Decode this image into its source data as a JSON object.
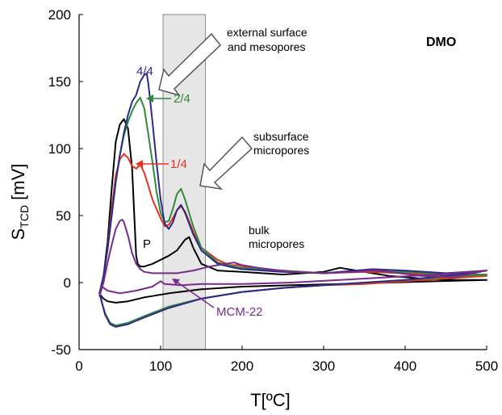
{
  "chart_data": {
    "type": "line",
    "title": "DMO",
    "xlabel": "T[ºC]",
    "ylabel": {
      "main": "S",
      "sub": "TCD",
      "unit": " [mV]"
    },
    "xlim": [
      0,
      500
    ],
    "ylim": [
      -50,
      200
    ],
    "xticks": [
      0,
      100,
      200,
      300,
      400,
      500
    ],
    "yticks": [
      -50,
      0,
      50,
      100,
      150,
      200
    ],
    "grid": false,
    "legend": "none",
    "shaded_band": {
      "x_from": 103,
      "x_to": 155,
      "color": "#e6e6e6"
    },
    "series": [
      {
        "name": "P",
        "color": "#000000",
        "x": [
          25,
          30,
          35,
          40,
          45,
          50,
          55,
          60,
          65,
          70,
          72,
          75,
          80,
          90,
          100,
          110,
          120,
          130,
          135,
          140,
          150,
          170,
          200,
          250,
          300,
          320,
          340,
          380,
          420,
          460,
          500
        ],
        "y": [
          -8,
          5,
          30,
          70,
          105,
          118,
          122,
          115,
          85,
          20,
          14,
          12,
          12,
          14,
          17,
          20,
          24,
          32,
          34,
          26,
          14,
          9,
          8,
          6,
          8,
          11,
          9,
          5,
          3,
          2,
          2
        ],
        "return_x": [
          500,
          440,
          380,
          320,
          260,
          200,
          150,
          110,
          80,
          60,
          45,
          35,
          30,
          27,
          25
        ],
        "return_y": [
          2,
          1,
          0,
          -1,
          -2,
          -3,
          -5,
          -8,
          -11,
          -14,
          -15,
          -14,
          -12,
          -10,
          -8
        ]
      },
      {
        "name": "1/4",
        "color": "#e8321e",
        "x": [
          25,
          30,
          35,
          40,
          45,
          50,
          55,
          60,
          65,
          70,
          75,
          80,
          85,
          90,
          100,
          105,
          110,
          115,
          120,
          125,
          130,
          140,
          150,
          170,
          185,
          195,
          210,
          250,
          300,
          350,
          400,
          450,
          500
        ],
        "y": [
          -8,
          5,
          25,
          55,
          80,
          92,
          96,
          93,
          87,
          85,
          88,
          82,
          72,
          62,
          48,
          42,
          43,
          48,
          54,
          57,
          53,
          38,
          26,
          17,
          13,
          13,
          11,
          9,
          7,
          8,
          7,
          5,
          5
        ],
        "return_x": [
          500,
          450,
          400,
          350,
          300,
          250,
          200,
          150,
          110,
          80,
          60,
          45,
          38,
          32,
          28,
          25
        ],
        "return_y": [
          5,
          3,
          1,
          -1,
          -2,
          -4,
          -7,
          -12,
          -18,
          -25,
          -31,
          -33,
          -31,
          -24,
          -15,
          -8
        ]
      },
      {
        "name": "2/4",
        "color": "#2e8b3e",
        "x": [
          25,
          30,
          35,
          40,
          45,
          50,
          55,
          60,
          65,
          70,
          75,
          80,
          85,
          90,
          95,
          100,
          105,
          110,
          115,
          120,
          125,
          130,
          140,
          150,
          170,
          190,
          200,
          250,
          300,
          350,
          400,
          450,
          500
        ],
        "y": [
          -8,
          5,
          25,
          50,
          75,
          95,
          110,
          120,
          128,
          134,
          138,
          130,
          110,
          90,
          68,
          52,
          45,
          46,
          55,
          66,
          70,
          62,
          42,
          26,
          15,
          12,
          11,
          9,
          7,
          9,
          8,
          6,
          6
        ],
        "return_x": [
          500,
          450,
          400,
          350,
          300,
          250,
          200,
          150,
          110,
          80,
          60,
          45,
          38,
          32,
          28,
          25
        ],
        "return_y": [
          6,
          4,
          2,
          0,
          -2,
          -4,
          -7,
          -12,
          -18,
          -25,
          -30,
          -32,
          -30,
          -23,
          -15,
          -8
        ]
      },
      {
        "name": "4/4",
        "color": "#2b2a8c",
        "x": [
          25,
          30,
          35,
          40,
          45,
          50,
          55,
          60,
          65,
          70,
          75,
          80,
          83,
          85,
          90,
          95,
          100,
          105,
          110,
          115,
          120,
          125,
          130,
          140,
          150,
          170,
          190,
          200,
          250,
          300,
          360,
          400,
          450,
          500
        ],
        "y": [
          -8,
          5,
          25,
          50,
          75,
          95,
          112,
          125,
          135,
          140,
          150,
          155,
          156,
          148,
          120,
          90,
          62,
          44,
          40,
          45,
          54,
          58,
          52,
          36,
          24,
          14,
          11,
          10,
          8,
          7,
          10,
          9,
          7,
          9
        ],
        "return_x": [
          500,
          450,
          400,
          350,
          300,
          250,
          200,
          150,
          110,
          80,
          60,
          45,
          38,
          32,
          28,
          25
        ],
        "return_y": [
          9,
          5,
          2,
          0,
          -2,
          -4,
          -7,
          -12,
          -19,
          -26,
          -31,
          -33,
          -31,
          -24,
          -15,
          -8
        ]
      },
      {
        "name": "MCM-22",
        "color": "#7a2a8c",
        "x": [
          25,
          30,
          35,
          40,
          45,
          50,
          53,
          55,
          60,
          65,
          70,
          75,
          80,
          90,
          100,
          120,
          140,
          160,
          180,
          190,
          200,
          220,
          260,
          300,
          340,
          360,
          380,
          420,
          460,
          500
        ],
        "y": [
          -10,
          0,
          15,
          28,
          40,
          46,
          47,
          45,
          35,
          22,
          14,
          10,
          8,
          7,
          7,
          7,
          9,
          12,
          14,
          15,
          13,
          11,
          8,
          7,
          8,
          9,
          8,
          5,
          4,
          9
        ],
        "return_x": [
          500,
          440,
          380,
          320,
          260,
          200,
          150,
          125,
          105,
          100,
          90,
          70,
          50,
          35,
          28,
          25
        ],
        "return_y": [
          9,
          6,
          4,
          2,
          0,
          -1,
          -1,
          -2,
          -1,
          1,
          -3,
          -6,
          -8,
          -6,
          -3,
          -10
        ]
      }
    ],
    "series_labels": [
      {
        "text": "4/4",
        "color": "#2b2a8c"
      },
      {
        "text": "2/4",
        "color": "#2e8b3e"
      },
      {
        "text": "1/4",
        "color": "#e8321e"
      },
      {
        "text": "P",
        "color": "#000000"
      },
      {
        "text": "MCM-22",
        "color": "#7a2a8c"
      }
    ],
    "annotations": [
      {
        "lines": [
          "external surface",
          "and mesopores"
        ]
      },
      {
        "lines": [
          "subsurface",
          "micropores"
        ]
      },
      {
        "lines": [
          "bulk",
          "micropores"
        ]
      }
    ]
  }
}
